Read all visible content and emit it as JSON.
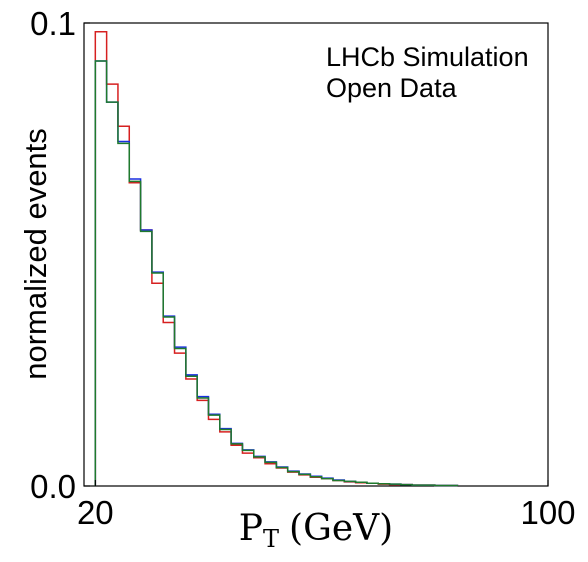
{
  "chart_data": {
    "type": "step",
    "annotations": [
      "LHCb Simulation",
      "Open Data"
    ],
    "xlabel": {
      "main": "P",
      "sub": "T",
      "unit": "(GeV)"
    },
    "ylabel": "normalized events",
    "xlim": [
      18,
      100
    ],
    "ylim": [
      0,
      0.1
    ],
    "x_ticks": [
      {
        "value": 20,
        "label": "20"
      },
      {
        "value": 100,
        "label": "100"
      }
    ],
    "y_ticks": [
      {
        "value": 0,
        "label": "0.0"
      },
      {
        "value": 0.1,
        "label": "0.1"
      }
    ],
    "bin_edges": [
      20,
      22,
      24,
      26,
      28,
      30,
      32,
      34,
      36,
      38,
      40,
      42,
      44,
      46,
      48,
      50,
      52,
      54,
      56,
      58,
      60,
      62,
      64,
      66,
      68,
      70,
      72,
      74,
      76,
      78,
      80,
      82,
      84
    ],
    "series": [
      {
        "color": "#d62020",
        "values": [
          0.0981,
          0.0868,
          0.0777,
          0.0655,
          0.0553,
          0.0438,
          0.0353,
          0.0287,
          0.0231,
          0.0185,
          0.0144,
          0.0117,
          0.0088,
          0.0071,
          0.0061,
          0.0048,
          0.0039,
          0.003,
          0.0024,
          0.0019,
          0.0016,
          0.0012,
          0.0009,
          0.0007,
          0.0006,
          0.0004,
          0.0003,
          0.0003,
          0.0002,
          0.0002,
          0.0001,
          0.0001
        ]
      },
      {
        "color": "#1a2ee0",
        "values": [
          0.0918,
          0.0829,
          0.0744,
          0.0663,
          0.0553,
          0.0462,
          0.0367,
          0.03,
          0.024,
          0.0193,
          0.0155,
          0.0124,
          0.0092,
          0.0078,
          0.0064,
          0.0052,
          0.0041,
          0.0032,
          0.0026,
          0.0021,
          0.0017,
          0.0013,
          0.001,
          0.0008,
          0.0006,
          0.0005,
          0.0004,
          0.0003,
          0.0002,
          0.0002,
          0.0001,
          0.0001
        ]
      },
      {
        "color": "#1f7a2c",
        "values": [
          0.0918,
          0.0829,
          0.074,
          0.0658,
          0.055,
          0.046,
          0.0365,
          0.0297,
          0.0237,
          0.019,
          0.0153,
          0.0122,
          0.0091,
          0.0077,
          0.0063,
          0.0051,
          0.004,
          0.0031,
          0.0025,
          0.002,
          0.0016,
          0.0012,
          0.001,
          0.0008,
          0.0006,
          0.0005,
          0.0004,
          0.0003,
          0.0002,
          0.0002,
          0.0001,
          0.0001
        ]
      }
    ]
  }
}
